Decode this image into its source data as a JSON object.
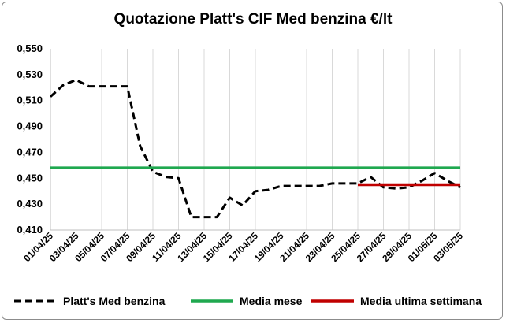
{
  "chart_data": {
    "type": "line",
    "title": "Quotazione Platt's CIF Med benzina €/lt",
    "x_tick_labels": [
      "01/04/25",
      "03/04/25",
      "05/04/25",
      "07/04/25",
      "09/04/25",
      "11/04/25",
      "13/04/25",
      "15/04/25",
      "17/04/25",
      "19/04/25",
      "21/04/25",
      "23/04/25",
      "25/04/25",
      "27/04/25",
      "29/04/25",
      "01/05/25",
      "03/05/25"
    ],
    "y_tick_labels": [
      "0,410",
      "0,430",
      "0,450",
      "0,470",
      "0,490",
      "0,510",
      "0,530",
      "0,550"
    ],
    "ylim": [
      0.41,
      0.55
    ],
    "xlim": [
      "2025-04-01",
      "2025-05-03"
    ],
    "grid": "vertical",
    "legend_position": "bottom",
    "series": [
      {
        "name": "Platt's Med benzina",
        "color": "#000000",
        "style": "dashed",
        "points": [
          [
            "2025-04-01",
            0.513
          ],
          [
            "2025-04-02",
            0.522
          ],
          [
            "2025-04-03",
            0.526
          ],
          [
            "2025-04-04",
            0.521
          ],
          [
            "2025-04-07",
            0.521
          ],
          [
            "2025-04-08",
            0.475
          ],
          [
            "2025-04-09",
            0.455
          ],
          [
            "2025-04-10",
            0.451
          ],
          [
            "2025-04-11",
            0.45
          ],
          [
            "2025-04-12",
            0.42
          ],
          [
            "2025-04-14",
            0.42
          ],
          [
            "2025-04-15",
            0.435
          ],
          [
            "2025-04-16",
            0.429
          ],
          [
            "2025-04-17",
            0.44
          ],
          [
            "2025-04-18",
            0.441
          ],
          [
            "2025-04-19",
            0.444
          ],
          [
            "2025-04-22",
            0.444
          ],
          [
            "2025-04-23",
            0.446
          ],
          [
            "2025-04-24",
            0.446
          ],
          [
            "2025-04-25",
            0.446
          ],
          [
            "2025-04-26",
            0.451
          ],
          [
            "2025-04-27",
            0.443
          ],
          [
            "2025-04-28",
            0.442
          ],
          [
            "2025-04-29",
            0.443
          ],
          [
            "2025-04-30",
            0.448
          ],
          [
            "2025-05-01",
            0.454
          ],
          [
            "2025-05-02",
            0.448
          ],
          [
            "2025-05-03",
            0.443
          ]
        ]
      },
      {
        "name": "Media mese",
        "color": "#1fa84f",
        "style": "solid",
        "points": [
          [
            "2025-04-01",
            0.458
          ],
          [
            "2025-05-03",
            0.458
          ]
        ]
      },
      {
        "name": "Media ultima settimana",
        "color": "#c00000",
        "style": "solid",
        "points": [
          [
            "2025-04-25",
            0.445
          ],
          [
            "2025-05-03",
            0.445
          ]
        ]
      }
    ]
  }
}
